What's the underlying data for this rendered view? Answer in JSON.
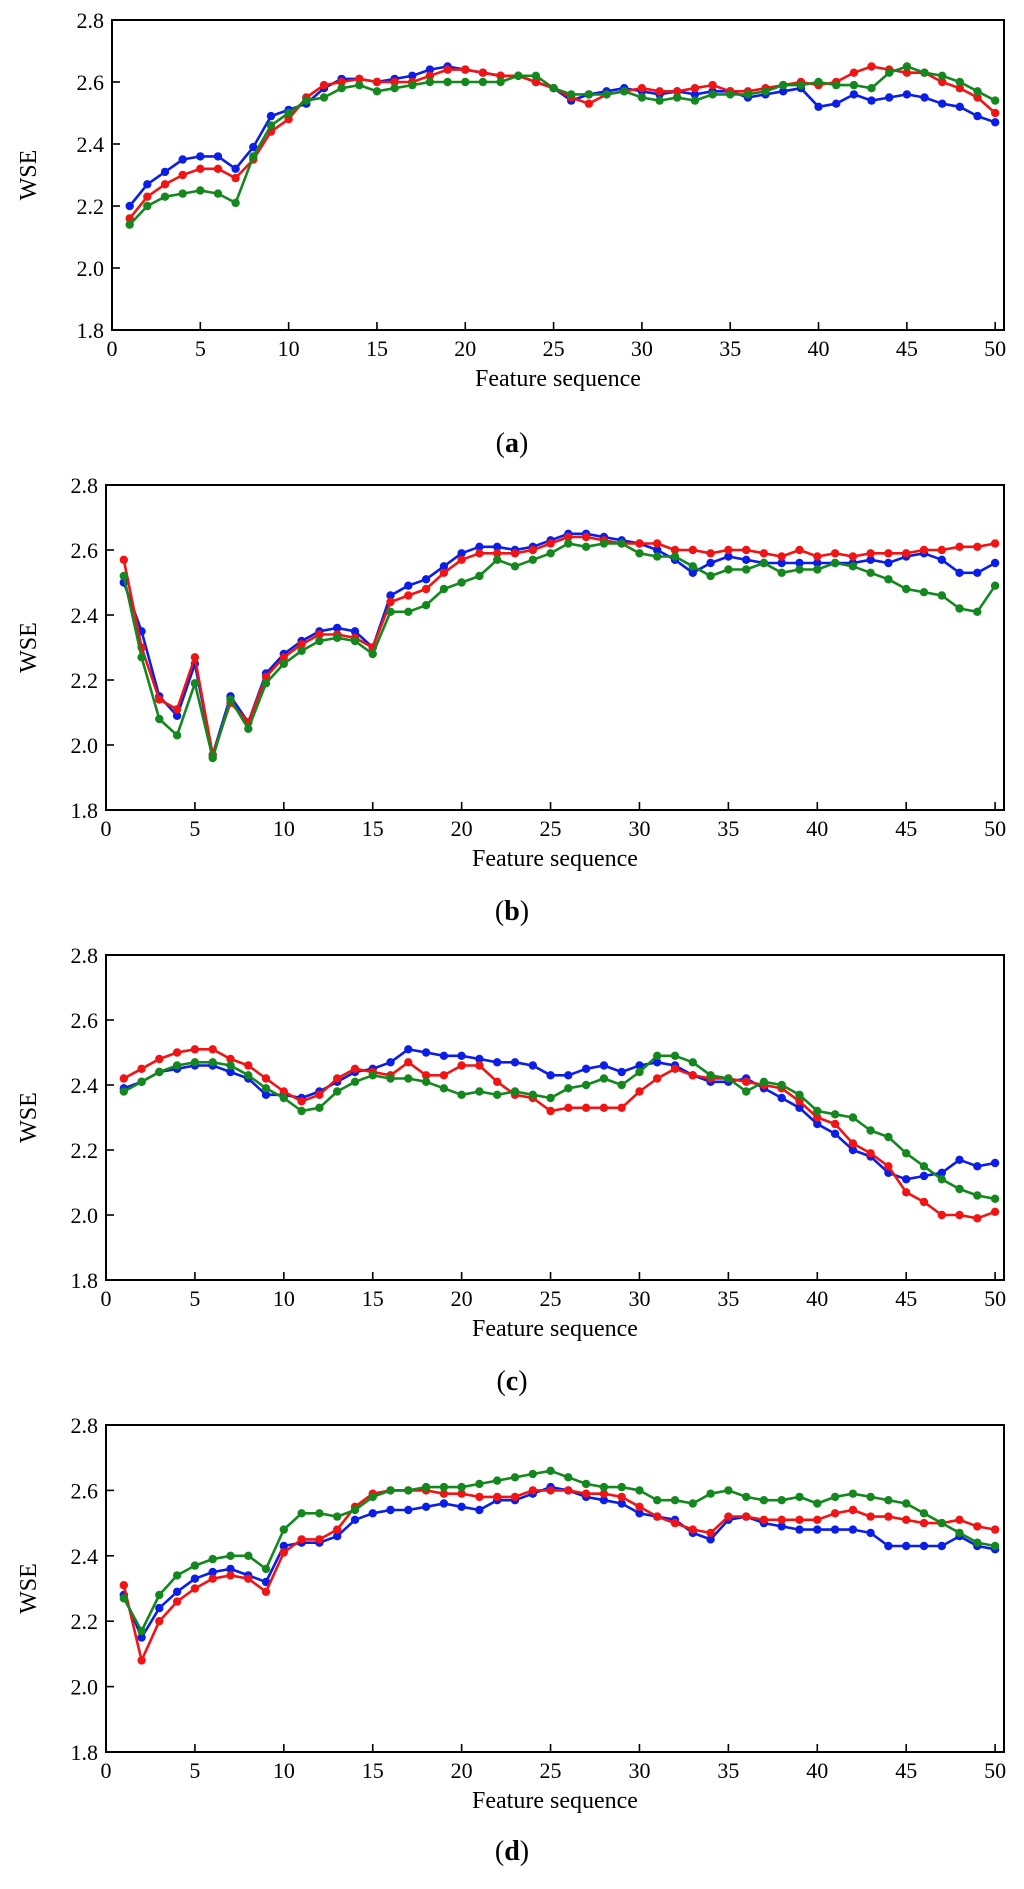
{
  "figure": {
    "colors": {
      "blue": "#0a1ee8",
      "red": "#f01414",
      "green": "#14871e"
    },
    "x_ticks": [
      "0",
      "5",
      "10",
      "15",
      "20",
      "25",
      "30",
      "35",
      "40",
      "45",
      "50"
    ],
    "y_ticks": [
      "1.8",
      "2.0",
      "2.2",
      "2.4",
      "2.6",
      "2.8"
    ]
  },
  "chart_data": [
    {
      "type": "line",
      "panel": "a",
      "caption_open": "(",
      "caption_letter": "a",
      "caption_close": ")",
      "xlabel": "Feature sequence",
      "ylabel": "WSE",
      "xlim": [
        0,
        50.5
      ],
      "ylim": [
        1.8,
        2.8
      ],
      "series": [
        {
          "name": "blue",
          "color": "#0a1ee8",
          "values": [
            2.2,
            2.27,
            2.31,
            2.35,
            2.36,
            2.36,
            2.32,
            2.39,
            2.49,
            2.51,
            2.53,
            2.58,
            2.61,
            2.61,
            2.6,
            2.61,
            2.62,
            2.64,
            2.65,
            2.64,
            2.63,
            2.62,
            2.62,
            2.6,
            2.58,
            2.54,
            2.56,
            2.57,
            2.58,
            2.57,
            2.56,
            2.57,
            2.56,
            2.57,
            2.57,
            2.55,
            2.56,
            2.57,
            2.58,
            2.52,
            2.53,
            2.56,
            2.54,
            2.55,
            2.56,
            2.55,
            2.53,
            2.52,
            2.49,
            2.47
          ]
        },
        {
          "name": "red",
          "color": "#f01414",
          "values": [
            2.16,
            2.23,
            2.27,
            2.3,
            2.32,
            2.32,
            2.29,
            2.35,
            2.44,
            2.48,
            2.55,
            2.59,
            2.6,
            2.61,
            2.6,
            2.6,
            2.6,
            2.62,
            2.64,
            2.64,
            2.63,
            2.62,
            2.62,
            2.6,
            2.58,
            2.55,
            2.53,
            2.56,
            2.57,
            2.58,
            2.57,
            2.57,
            2.58,
            2.59,
            2.57,
            2.57,
            2.58,
            2.59,
            2.6,
            2.59,
            2.6,
            2.63,
            2.65,
            2.64,
            2.63,
            2.63,
            2.6,
            2.58,
            2.55,
            2.5
          ]
        },
        {
          "name": "green",
          "color": "#14871e",
          "values": [
            2.14,
            2.2,
            2.23,
            2.24,
            2.25,
            2.24,
            2.21,
            2.36,
            2.46,
            2.5,
            2.54,
            2.55,
            2.58,
            2.59,
            2.57,
            2.58,
            2.59,
            2.6,
            2.6,
            2.6,
            2.6,
            2.6,
            2.62,
            2.62,
            2.58,
            2.56,
            2.56,
            2.56,
            2.57,
            2.55,
            2.54,
            2.55,
            2.54,
            2.56,
            2.56,
            2.56,
            2.57,
            2.59,
            2.59,
            2.6,
            2.59,
            2.59,
            2.58,
            2.63,
            2.65,
            2.63,
            2.62,
            2.6,
            2.57,
            2.54
          ]
        }
      ]
    },
    {
      "type": "line",
      "panel": "b",
      "caption_open": "(",
      "caption_letter": "b",
      "caption_close": ")",
      "xlabel": "Feature sequence",
      "ylabel": "WSE",
      "xlim": [
        0,
        50.5
      ],
      "ylim": [
        1.8,
        2.8
      ],
      "series": [
        {
          "name": "blue",
          "color": "#0a1ee8",
          "values": [
            2.5,
            2.35,
            2.15,
            2.09,
            2.25,
            1.97,
            2.15,
            2.07,
            2.22,
            2.28,
            2.32,
            2.35,
            2.36,
            2.35,
            2.3,
            2.46,
            2.49,
            2.51,
            2.55,
            2.59,
            2.61,
            2.61,
            2.6,
            2.61,
            2.63,
            2.65,
            2.65,
            2.64,
            2.63,
            2.62,
            2.6,
            2.57,
            2.53,
            2.56,
            2.58,
            2.57,
            2.56,
            2.56,
            2.56,
            2.56,
            2.56,
            2.56,
            2.57,
            2.56,
            2.58,
            2.59,
            2.57,
            2.53,
            2.53,
            2.56
          ]
        },
        {
          "name": "red",
          "color": "#f01414",
          "values": [
            2.57,
            2.3,
            2.14,
            2.11,
            2.27,
            1.97,
            2.13,
            2.07,
            2.21,
            2.27,
            2.31,
            2.34,
            2.34,
            2.33,
            2.3,
            2.44,
            2.46,
            2.48,
            2.53,
            2.57,
            2.59,
            2.59,
            2.59,
            2.6,
            2.62,
            2.64,
            2.64,
            2.63,
            2.62,
            2.62,
            2.62,
            2.6,
            2.6,
            2.59,
            2.6,
            2.6,
            2.59,
            2.58,
            2.6,
            2.58,
            2.59,
            2.58,
            2.59,
            2.59,
            2.59,
            2.6,
            2.6,
            2.61,
            2.61,
            2.62
          ]
        },
        {
          "name": "green",
          "color": "#14871e",
          "values": [
            2.52,
            2.27,
            2.08,
            2.03,
            2.19,
            1.96,
            2.14,
            2.05,
            2.19,
            2.25,
            2.29,
            2.32,
            2.33,
            2.32,
            2.28,
            2.41,
            2.41,
            2.43,
            2.48,
            2.5,
            2.52,
            2.57,
            2.55,
            2.57,
            2.59,
            2.62,
            2.61,
            2.62,
            2.62,
            2.59,
            2.58,
            2.58,
            2.55,
            2.52,
            2.54,
            2.54,
            2.56,
            2.53,
            2.54,
            2.54,
            2.56,
            2.55,
            2.53,
            2.51,
            2.48,
            2.47,
            2.46,
            2.42,
            2.41,
            2.49
          ]
        }
      ]
    },
    {
      "type": "line",
      "panel": "c",
      "caption_open": "(",
      "caption_letter": "c",
      "caption_close": ")",
      "xlabel": "Feature sequence",
      "ylabel": "WSE",
      "xlim": [
        0,
        50.5
      ],
      "ylim": [
        1.8,
        2.8
      ],
      "series": [
        {
          "name": "blue",
          "color": "#0a1ee8",
          "values": [
            2.39,
            2.41,
            2.44,
            2.45,
            2.46,
            2.46,
            2.44,
            2.42,
            2.37,
            2.37,
            2.36,
            2.38,
            2.41,
            2.44,
            2.45,
            2.47,
            2.51,
            2.5,
            2.49,
            2.49,
            2.48,
            2.47,
            2.47,
            2.46,
            2.43,
            2.43,
            2.45,
            2.46,
            2.44,
            2.46,
            2.47,
            2.46,
            2.43,
            2.41,
            2.41,
            2.42,
            2.39,
            2.36,
            2.33,
            2.28,
            2.25,
            2.2,
            2.18,
            2.13,
            2.11,
            2.12,
            2.13,
            2.17,
            2.15,
            2.16
          ]
        },
        {
          "name": "red",
          "color": "#f01414",
          "values": [
            2.42,
            2.45,
            2.48,
            2.5,
            2.51,
            2.51,
            2.48,
            2.46,
            2.42,
            2.38,
            2.35,
            2.37,
            2.42,
            2.45,
            2.44,
            2.43,
            2.47,
            2.43,
            2.43,
            2.46,
            2.46,
            2.41,
            2.37,
            2.36,
            2.32,
            2.33,
            2.33,
            2.33,
            2.33,
            2.38,
            2.42,
            2.45,
            2.43,
            2.42,
            2.42,
            2.41,
            2.4,
            2.39,
            2.35,
            2.3,
            2.28,
            2.22,
            2.19,
            2.15,
            2.07,
            2.04,
            2.0,
            2.0,
            1.99,
            2.01
          ]
        },
        {
          "name": "green",
          "color": "#14871e",
          "values": [
            2.38,
            2.41,
            2.44,
            2.46,
            2.47,
            2.47,
            2.46,
            2.43,
            2.39,
            2.36,
            2.32,
            2.33,
            2.38,
            2.41,
            2.43,
            2.42,
            2.42,
            2.41,
            2.39,
            2.37,
            2.38,
            2.37,
            2.38,
            2.37,
            2.36,
            2.39,
            2.4,
            2.42,
            2.4,
            2.44,
            2.49,
            2.49,
            2.47,
            2.43,
            2.42,
            2.38,
            2.41,
            2.4,
            2.37,
            2.32,
            2.31,
            2.3,
            2.26,
            2.24,
            2.19,
            2.15,
            2.11,
            2.08,
            2.06,
            2.05
          ]
        }
      ]
    },
    {
      "type": "line",
      "panel": "d",
      "caption_open": "(",
      "caption_letter": "d",
      "caption_close": ")",
      "xlabel": "Feature sequence",
      "ylabel": "WSE",
      "xlim": [
        0,
        50.5
      ],
      "ylim": [
        1.8,
        2.8
      ],
      "series": [
        {
          "name": "blue",
          "color": "#0a1ee8",
          "values": [
            2.28,
            2.15,
            2.24,
            2.29,
            2.33,
            2.35,
            2.36,
            2.34,
            2.32,
            2.43,
            2.44,
            2.44,
            2.46,
            2.51,
            2.53,
            2.54,
            2.54,
            2.55,
            2.56,
            2.55,
            2.54,
            2.57,
            2.57,
            2.59,
            2.61,
            2.6,
            2.58,
            2.57,
            2.56,
            2.53,
            2.52,
            2.51,
            2.47,
            2.45,
            2.51,
            2.52,
            2.5,
            2.49,
            2.48,
            2.48,
            2.48,
            2.48,
            2.47,
            2.43,
            2.43,
            2.43,
            2.43,
            2.46,
            2.43,
            2.42
          ]
        },
        {
          "name": "red",
          "color": "#f01414",
          "values": [
            2.31,
            2.08,
            2.2,
            2.26,
            2.3,
            2.33,
            2.34,
            2.33,
            2.29,
            2.41,
            2.45,
            2.45,
            2.48,
            2.55,
            2.59,
            2.6,
            2.6,
            2.6,
            2.59,
            2.59,
            2.58,
            2.58,
            2.58,
            2.6,
            2.6,
            2.6,
            2.59,
            2.59,
            2.58,
            2.55,
            2.52,
            2.5,
            2.48,
            2.47,
            2.52,
            2.52,
            2.51,
            2.51,
            2.51,
            2.51,
            2.53,
            2.54,
            2.52,
            2.52,
            2.51,
            2.5,
            2.5,
            2.51,
            2.49,
            2.48
          ]
        },
        {
          "name": "green",
          "color": "#14871e",
          "values": [
            2.27,
            2.17,
            2.28,
            2.34,
            2.37,
            2.39,
            2.4,
            2.4,
            2.36,
            2.48,
            2.53,
            2.53,
            2.52,
            2.54,
            2.58,
            2.6,
            2.6,
            2.61,
            2.61,
            2.61,
            2.62,
            2.63,
            2.64,
            2.65,
            2.66,
            2.64,
            2.62,
            2.61,
            2.61,
            2.6,
            2.57,
            2.57,
            2.56,
            2.59,
            2.6,
            2.58,
            2.57,
            2.57,
            2.58,
            2.56,
            2.58,
            2.59,
            2.58,
            2.57,
            2.56,
            2.53,
            2.5,
            2.47,
            2.44,
            2.43
          ]
        }
      ]
    }
  ]
}
